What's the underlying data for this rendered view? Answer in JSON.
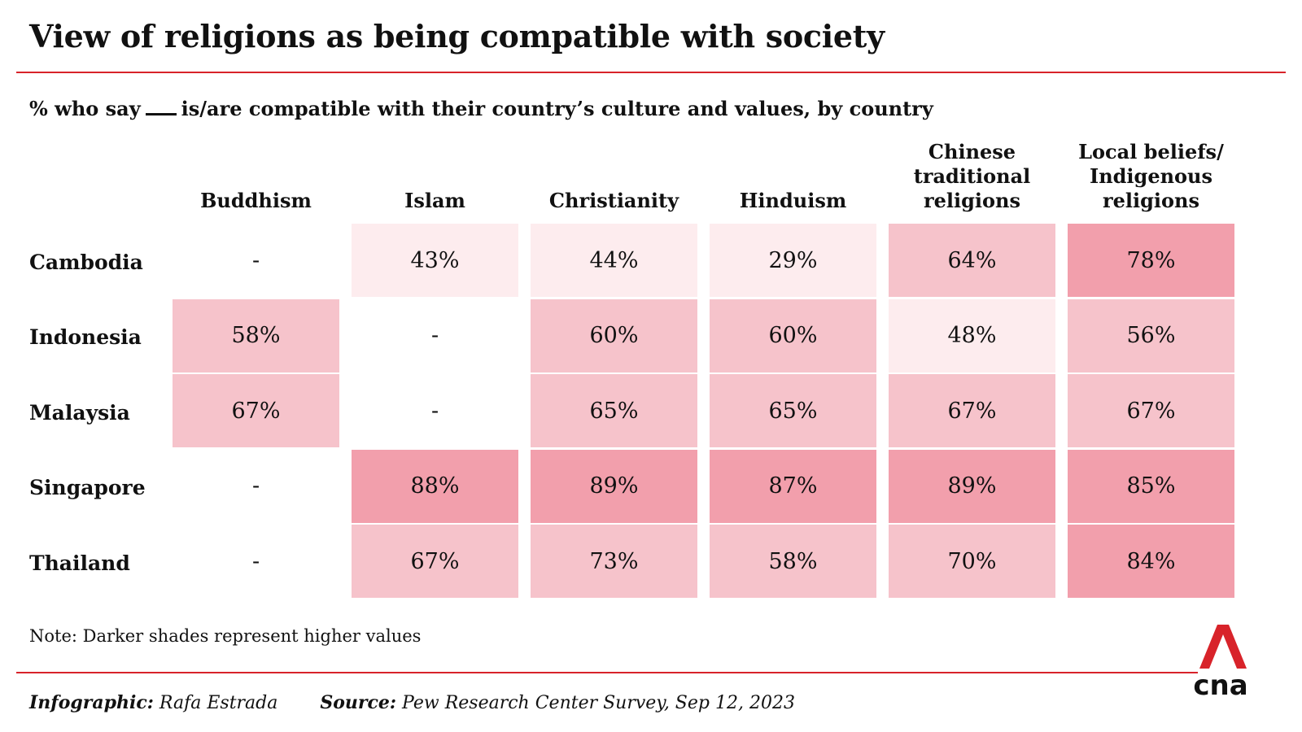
{
  "title": "View of religions as being compatible with society",
  "subtitle": {
    "before": "% who say",
    "after": "is/are compatible with their country’s culture and values, by country"
  },
  "note": "Note: Darker shades represent higher values",
  "credits": {
    "infographic_label": "Infographic:",
    "infographic_value": "Rafa Estrada",
    "source_label": "Source:",
    "source_value": "Pew Research Center Survey, Sep 12, 2023"
  },
  "logo": {
    "text": "cna",
    "color": "#d8232a"
  },
  "colors": {
    "scale": [
      "#fdecee",
      "#f6c3cb",
      "#f29fac"
    ],
    "missing_symbol": "-"
  },
  "chart_data": {
    "type": "heatmap",
    "columns": [
      [
        "Buddhism"
      ],
      [
        "Islam"
      ],
      [
        "Christianity"
      ],
      [
        "Hinduism"
      ],
      [
        "Chinese",
        "traditional",
        "religions"
      ],
      [
        "Local beliefs/",
        "Indigenous",
        "religions"
      ]
    ],
    "rows": [
      "Cambodia",
      "Indonesia",
      "Malaysia",
      "Singapore",
      "Thailand"
    ],
    "values": [
      [
        null,
        43,
        44,
        29,
        64,
        78
      ],
      [
        58,
        null,
        60,
        60,
        48,
        56
      ],
      [
        67,
        null,
        65,
        65,
        67,
        67
      ],
      [
        null,
        88,
        89,
        87,
        89,
        85
      ],
      [
        null,
        67,
        73,
        58,
        70,
        84
      ]
    ],
    "unit": "%"
  }
}
